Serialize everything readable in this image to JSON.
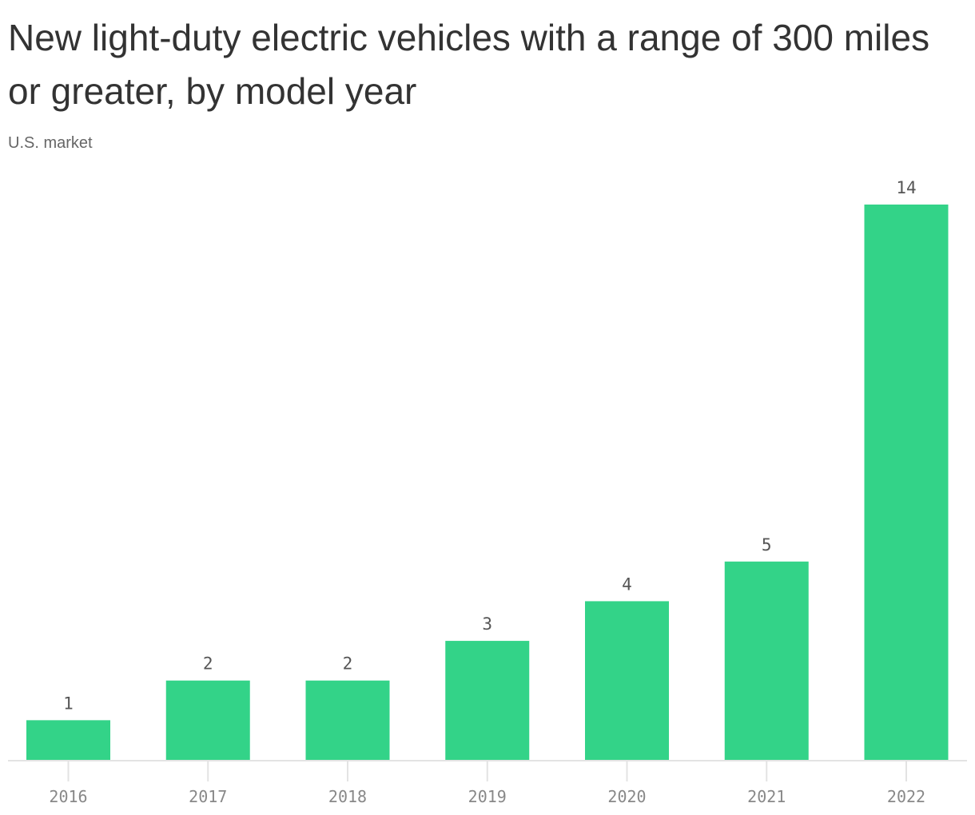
{
  "chart_data": {
    "type": "bar",
    "title": "New light-duty electric vehicles with a range of 300 miles or greater, by model year",
    "subtitle": "U.S. market",
    "categories": [
      "2016",
      "2017",
      "2018",
      "2019",
      "2020",
      "2021",
      "2022"
    ],
    "values": [
      1,
      2,
      2,
      3,
      4,
      5,
      14
    ],
    "xlabel": "",
    "ylabel": "",
    "ylim": [
      0,
      14
    ],
    "grid": false,
    "data_labels": true,
    "bar_color": "#33d388"
  }
}
